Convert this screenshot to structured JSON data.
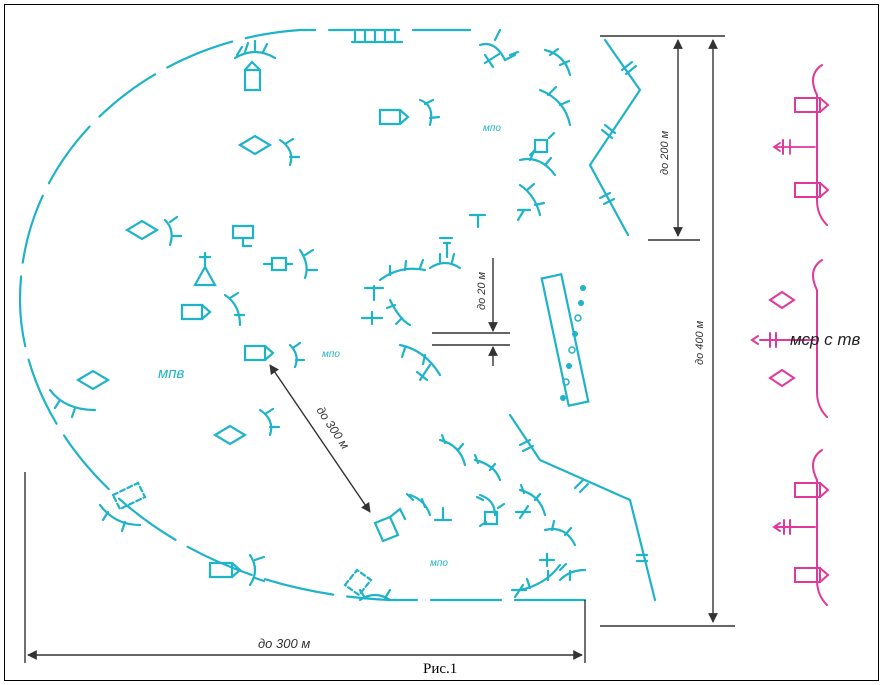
{
  "labels": {
    "center_label": "мпв",
    "platoon_label": "мпо",
    "pink_label": "мср с тв",
    "dist_200": "до 200 м",
    "dist_400": "до 400 м",
    "dist_20": "до 20 м",
    "dist_300_diag": "до 300 м",
    "dist_300_bottom": "до 300 м"
  },
  "caption": "Рис.1",
  "colors": {
    "position": "#1fb3c9",
    "enemy": "#e0389b",
    "dimension": "#333333"
  }
}
